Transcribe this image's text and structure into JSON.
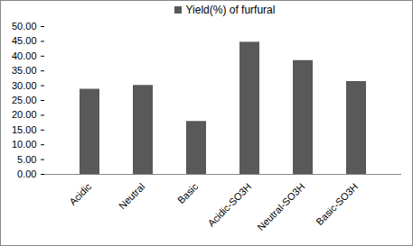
{
  "chart_data": {
    "type": "bar",
    "categories": [
      "Acidic",
      "Neutral",
      "Basic",
      "Acidic-SO3H",
      "Neutral-SO3H",
      "Basic-SO3H"
    ],
    "series": [
      {
        "name": "Yield(%) of furfural",
        "color": "#595959",
        "values": [
          28.8,
          30.1,
          17.9,
          44.7,
          38.5,
          31.4
        ]
      }
    ],
    "ylim": [
      0,
      50
    ],
    "yticks": [
      {
        "value": 0,
        "label": "0.00"
      },
      {
        "value": 5,
        "label": "5.00"
      },
      {
        "value": 10,
        "label": "10.00"
      },
      {
        "value": 15,
        "label": "15.00"
      },
      {
        "value": 20,
        "label": "20.00"
      },
      {
        "value": 25,
        "label": "25.00"
      },
      {
        "value": 30,
        "label": "30.00"
      },
      {
        "value": 35,
        "label": "35.00"
      },
      {
        "value": 40,
        "label": "40.00"
      },
      {
        "value": 45,
        "label": "45.00"
      },
      {
        "value": 50,
        "label": "50.00"
      }
    ],
    "grid": false,
    "legend": "top"
  }
}
